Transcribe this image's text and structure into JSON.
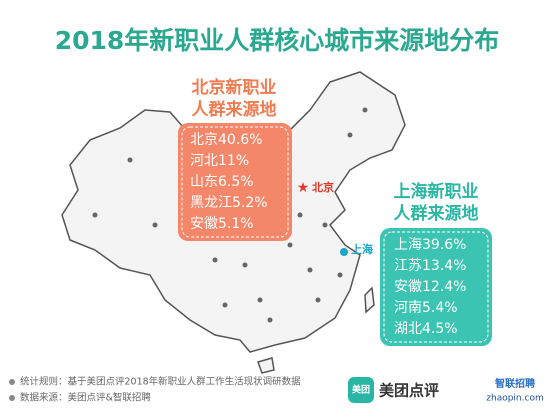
{
  "header": {
    "title": "2018年新职业人群核心城市来源地分布"
  },
  "beijing_panel": {
    "title_lines": [
      "北京新职业",
      "人群来源地"
    ],
    "items": [
      "北京40.6%",
      "河北11%",
      "山东6.5%",
      "黑龙江5.2%",
      "安徽5.1%"
    ]
  },
  "shanghai_panel": {
    "title_lines": [
      "上海新职业",
      "人群来源地"
    ],
    "items": [
      "上海39.6%",
      "江苏13.4%",
      "安徽12.4%",
      "河南5.4%",
      "湖北4.5%"
    ]
  },
  "map_labels": {
    "beijing": "北京",
    "shanghai": "上海"
  },
  "footer": {
    "notes": [
      "统计规则：基于美团点评2018年新职业人群工作生活现状调研数据",
      "数据来源：美团点评&智联招聘"
    ]
  },
  "logos": {
    "meituan_icon": "美团",
    "meituan": "美团点评",
    "zhilian": "智联招聘",
    "zhilian_url": "zhaopin.com"
  }
}
